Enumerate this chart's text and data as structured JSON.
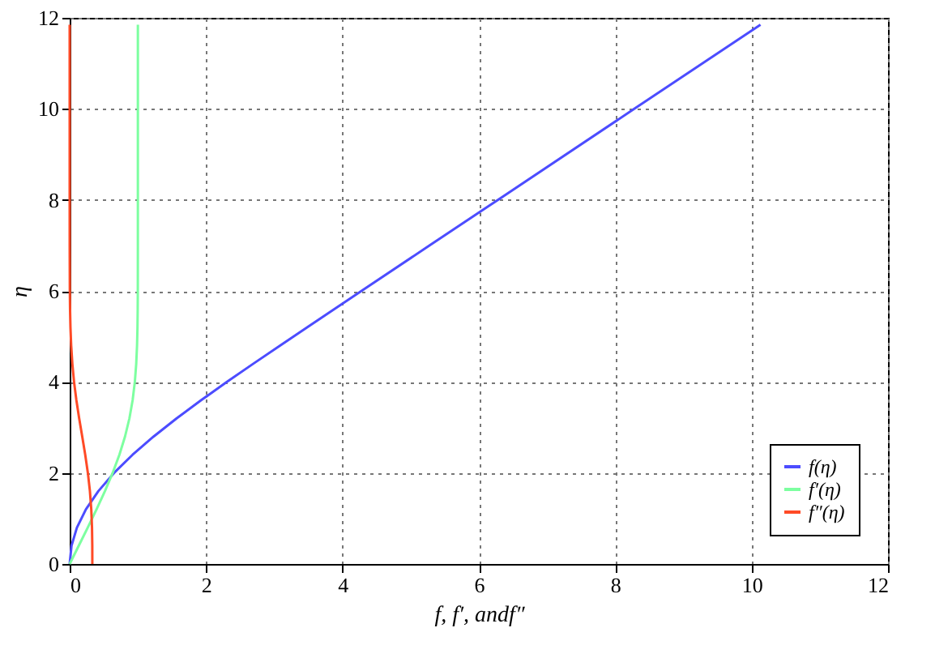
{
  "chart_data": {
    "type": "line",
    "xlabel": "f, f′, andf″",
    "ylabel": "η",
    "xlim": [
      0,
      12
    ],
    "ylim": [
      0,
      12
    ],
    "xticks": [
      0,
      2,
      4,
      6,
      8,
      10,
      12
    ],
    "yticks": [
      0,
      2,
      4,
      6,
      8,
      10,
      12
    ],
    "grid": true,
    "legend": "bottom right",
    "line_style": "solid",
    "marker": "none",
    "series": [
      {
        "name": "f(η)",
        "color": "#4c4cff",
        "x": [
          0,
          0.0266,
          0.1061,
          0.2379,
          0.4203,
          0.65,
          0.9223,
          1.231,
          1.5691,
          1.9295,
          2.3058,
          2.6924,
          3.0853,
          3.4819,
          3.8803,
          4.2796,
          5.2792,
          6.2792,
          8.2792,
          10.13
        ],
        "values": [
          0,
          0.4,
          0.8,
          1.2,
          1.6,
          2.0,
          2.4,
          2.8,
          3.2,
          3.6,
          4.0,
          4.4,
          4.8,
          5.2,
          5.6,
          6.0,
          7.0,
          8.0,
          10.0,
          11.85
        ]
      },
      {
        "name": "f′(η)",
        "color": "#7dffa0",
        "x": [
          0,
          0.1328,
          0.2647,
          0.3938,
          0.5168,
          0.6298,
          0.729,
          0.8115,
          0.8761,
          0.9233,
          0.9555,
          0.9759,
          0.9878,
          0.9943,
          0.9975,
          0.999,
          0.9999,
          1.0,
          1.0,
          1.0
        ],
        "values": [
          0,
          0.4,
          0.8,
          1.2,
          1.6,
          2.0,
          2.4,
          2.8,
          3.2,
          3.6,
          4.0,
          4.4,
          4.8,
          5.2,
          5.6,
          6.0,
          7.0,
          8.0,
          10.0,
          11.85
        ]
      },
      {
        "name": "f″(η)",
        "color": "#ff4a26",
        "x": [
          0.3321,
          0.3315,
          0.3274,
          0.3166,
          0.2967,
          0.2668,
          0.2281,
          0.184,
          0.1391,
          0.0981,
          0.0642,
          0.039,
          0.0219,
          0.0114,
          0.0054,
          0.0024,
          0.0002,
          0,
          0,
          0
        ],
        "values": [
          0,
          0.4,
          0.8,
          1.2,
          1.6,
          2.0,
          2.4,
          2.8,
          3.2,
          3.6,
          4.0,
          4.4,
          4.8,
          5.2,
          5.6,
          6.0,
          7.0,
          8.0,
          10.0,
          11.85
        ]
      }
    ]
  }
}
